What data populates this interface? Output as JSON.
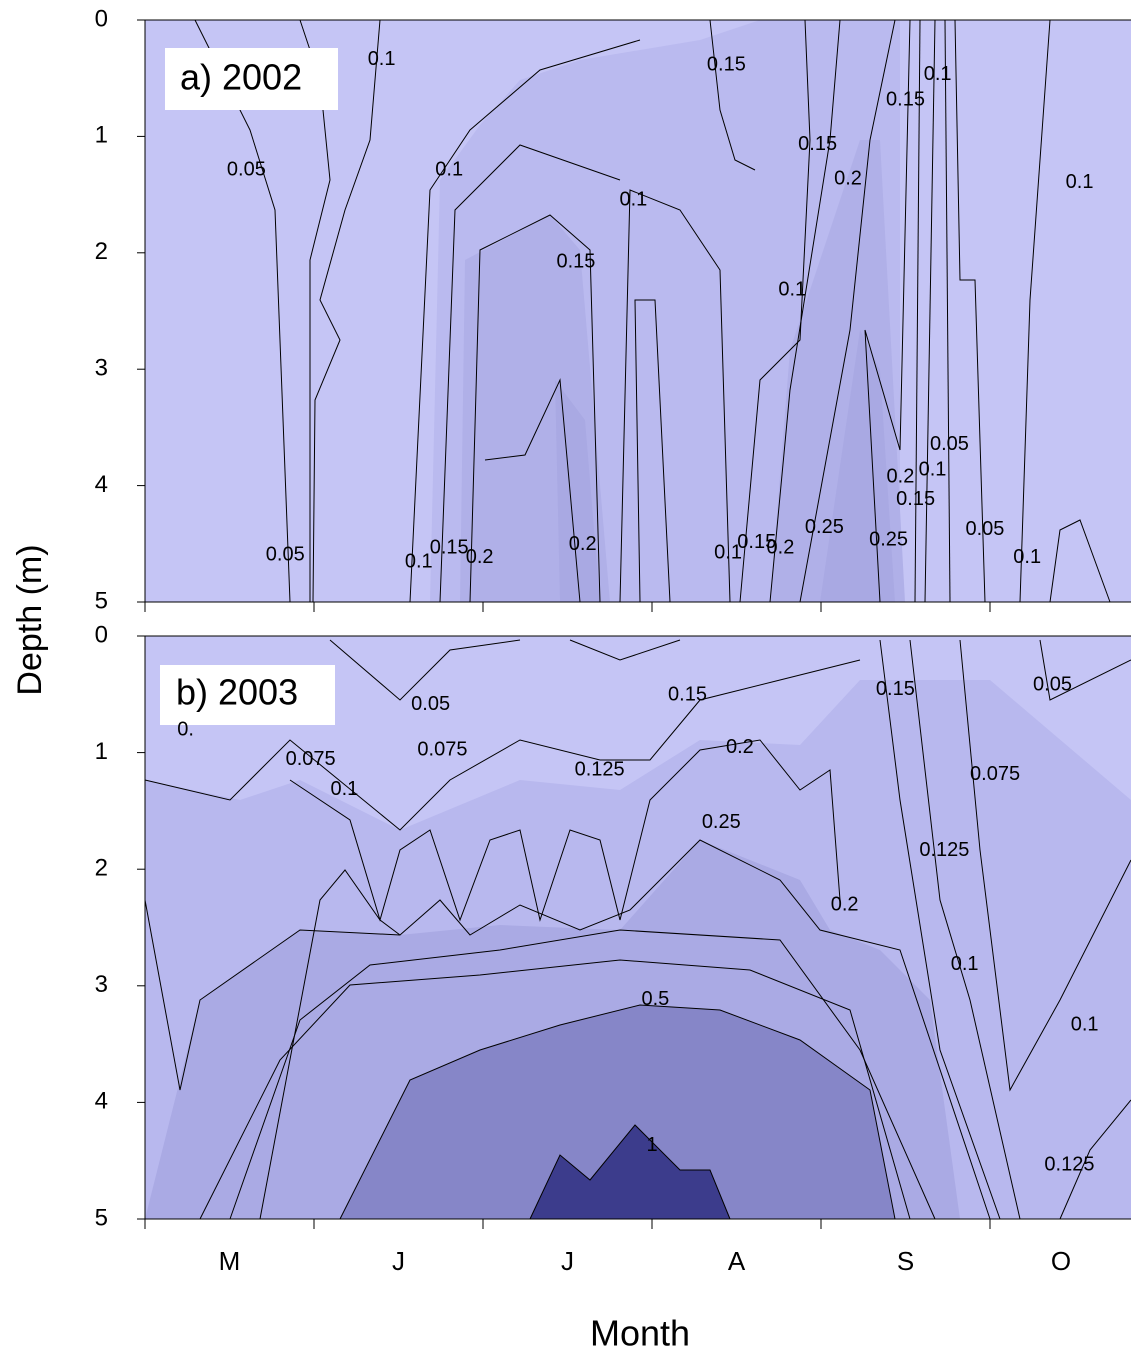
{
  "chart_data": [
    {
      "type": "contour",
      "title": "a) 2002",
      "ylabel": "Depth (m)",
      "ylim": [
        0,
        5
      ],
      "yticks": [
        0,
        1,
        2,
        3,
        4,
        5
      ],
      "contour_labels": [
        {
          "x": 1.4,
          "depth": 0.34,
          "value": 0.1
        },
        {
          "x": 0.6,
          "depth": 1.29,
          "value": 0.05
        },
        {
          "x": 3.44,
          "depth": 0.39,
          "value": 0.15
        },
        {
          "x": 4.5,
          "depth": 0.69,
          "value": 0.15
        },
        {
          "x": 4.69,
          "depth": 0.47,
          "value": 0.1
        },
        {
          "x": 3.98,
          "depth": 1.07,
          "value": 0.15
        },
        {
          "x": 4.16,
          "depth": 1.37,
          "value": 0.2
        },
        {
          "x": 1.8,
          "depth": 1.29,
          "value": 0.1
        },
        {
          "x": 2.89,
          "depth": 1.55,
          "value": 0.1
        },
        {
          "x": 2.55,
          "depth": 2.08,
          "value": 0.15
        },
        {
          "x": 3.83,
          "depth": 2.32,
          "value": 0.1
        },
        {
          "x": 5.53,
          "depth": 1.4,
          "value": 0.1
        },
        {
          "x": 4.76,
          "depth": 3.65,
          "value": 0.05
        },
        {
          "x": 0.83,
          "depth": 4.6,
          "value": 0.05
        },
        {
          "x": 1.62,
          "depth": 4.66,
          "value": 0.1
        },
        {
          "x": 1.8,
          "depth": 4.54,
          "value": 0.15
        },
        {
          "x": 1.98,
          "depth": 4.62,
          "value": 0.2
        },
        {
          "x": 2.59,
          "depth": 4.51,
          "value": 0.2
        },
        {
          "x": 3.45,
          "depth": 4.58,
          "value": 0.1
        },
        {
          "x": 3.62,
          "depth": 4.49,
          "value": 0.15
        },
        {
          "x": 3.76,
          "depth": 4.54,
          "value": 0.2
        },
        {
          "x": 4.02,
          "depth": 4.36,
          "value": 0.25
        },
        {
          "x": 4.4,
          "depth": 4.47,
          "value": 0.25
        },
        {
          "x": 4.47,
          "depth": 3.93,
          "value": 0.2
        },
        {
          "x": 4.66,
          "depth": 3.87,
          "value": 0.1
        },
        {
          "x": 4.56,
          "depth": 4.12,
          "value": 0.15
        },
        {
          "x": 4.97,
          "depth": 4.38,
          "value": 0.05
        },
        {
          "x": 5.22,
          "depth": 4.62,
          "value": 0.1
        }
      ]
    },
    {
      "type": "contour",
      "title": "b) 2003",
      "xlabel": "Month",
      "categories": [
        "M",
        "J",
        "J",
        "A",
        "S",
        "O"
      ],
      "ylim": [
        0,
        5
      ],
      "yticks": [
        0,
        1,
        2,
        3,
        4,
        5
      ],
      "contour_labels": [
        {
          "x": 0.24,
          "depth": 0.81,
          "value": 0.05,
          "label": "0."
        },
        {
          "x": 1.69,
          "depth": 0.59,
          "value": 0.05
        },
        {
          "x": 0.98,
          "depth": 1.06,
          "value": 0.075
        },
        {
          "x": 1.18,
          "depth": 1.32,
          "value": 0.1
        },
        {
          "x": 1.76,
          "depth": 0.98,
          "value": 0.075
        },
        {
          "x": 2.69,
          "depth": 1.15,
          "value": 0.125
        },
        {
          "x": 3.21,
          "depth": 0.51,
          "value": 0.15
        },
        {
          "x": 3.52,
          "depth": 0.96,
          "value": 0.2
        },
        {
          "x": 3.41,
          "depth": 1.6,
          "value": 0.25
        },
        {
          "x": 3.02,
          "depth": 3.12,
          "value": 0.5
        },
        {
          "x": 3.0,
          "depth": 4.37,
          "value": 1
        },
        {
          "x": 4.14,
          "depth": 2.31,
          "value": 0.2
        },
        {
          "x": 4.44,
          "depth": 0.46,
          "value": 0.15
        },
        {
          "x": 4.73,
          "depth": 1.84,
          "value": 0.125
        },
        {
          "x": 5.03,
          "depth": 1.19,
          "value": 0.075
        },
        {
          "x": 4.85,
          "depth": 2.82,
          "value": 0.1
        },
        {
          "x": 5.37,
          "depth": 0.42,
          "value": 0.05
        },
        {
          "x": 5.56,
          "depth": 3.34,
          "value": 0.1
        },
        {
          "x": 5.47,
          "depth": 4.54,
          "value": 0.125
        }
      ]
    }
  ]
}
